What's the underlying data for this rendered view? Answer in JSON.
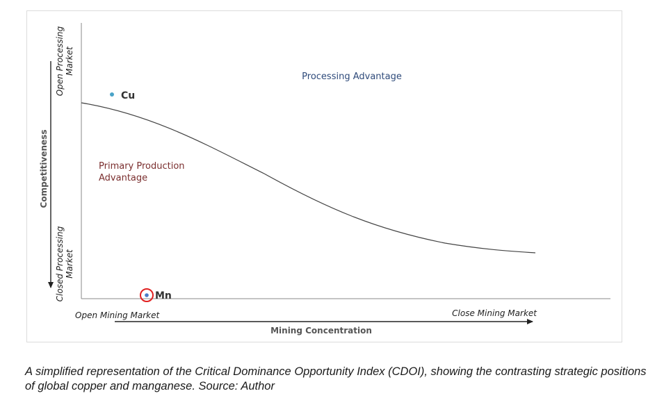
{
  "diagram": {
    "region_top_label": "Processing Advantage",
    "region_bottom_label_line1": "Primary Production",
    "region_bottom_label_line2": "Advantage",
    "y_axis_title": "Competitiveness",
    "y_top_label_line1": "Open Processing",
    "y_top_label_line2": "Market",
    "y_bottom_label_line1": "Closed Processing",
    "y_bottom_label_line2": "Market",
    "x_left_label": "Open Mining Market",
    "x_right_label": "Close Mining Market",
    "x_axis_title": "Mining Concentration",
    "points": [
      {
        "label": "Cu",
        "color": "#4aa3c8",
        "highlighted": false
      },
      {
        "label": "Mn",
        "color": "#4a7bc8",
        "highlighted": true,
        "ring_color": "#e02020"
      }
    ],
    "colors": {
      "processing_label": "#2e4a7a",
      "primary_label": "#7a2e2e",
      "axis": "#888888",
      "curve": "#444444",
      "text": "#555555"
    }
  },
  "caption": "A simplified representation of the Critical Dominance Opportunity Index (CDOI), showing the contrasting strategic positions of global copper and manganese. Source: Author"
}
